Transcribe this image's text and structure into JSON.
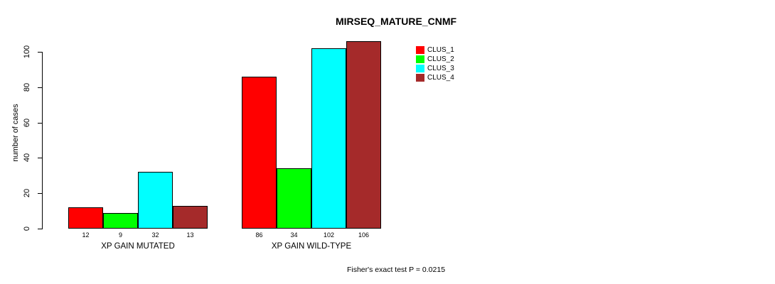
{
  "title": "MIRSEQ_MATURE_CNMF",
  "y_axis": {
    "label": "number of cases",
    "ticks": [
      0,
      20,
      40,
      60,
      80,
      100
    ]
  },
  "footer": "Fisher's exact test P = 0.0215",
  "chart_data": {
    "type": "bar",
    "title": "MIRSEQ_MATURE_CNMF",
    "xlabel": "",
    "ylabel": "number of cases",
    "categories": [
      "XP GAIN MUTATED",
      "XP GAIN WILD-TYPE"
    ],
    "series": [
      {
        "name": "CLUS_1",
        "color": "#ff0000",
        "values": [
          12,
          86
        ]
      },
      {
        "name": "CLUS_2",
        "color": "#00ff00",
        "values": [
          9,
          34
        ]
      },
      {
        "name": "CLUS_3",
        "color": "#00ffff",
        "values": [
          32,
          102
        ]
      },
      {
        "name": "CLUS_4",
        "color": "#a52a2a",
        "values": [
          13,
          106
        ]
      }
    ],
    "ylim": [
      0,
      100
    ],
    "yticks": [
      0,
      20,
      40,
      60,
      80,
      100
    ],
    "bar_value_labels": true,
    "grid": false,
    "legend_position": "top-right",
    "annotation": "Fisher's exact test P = 0.0215"
  }
}
